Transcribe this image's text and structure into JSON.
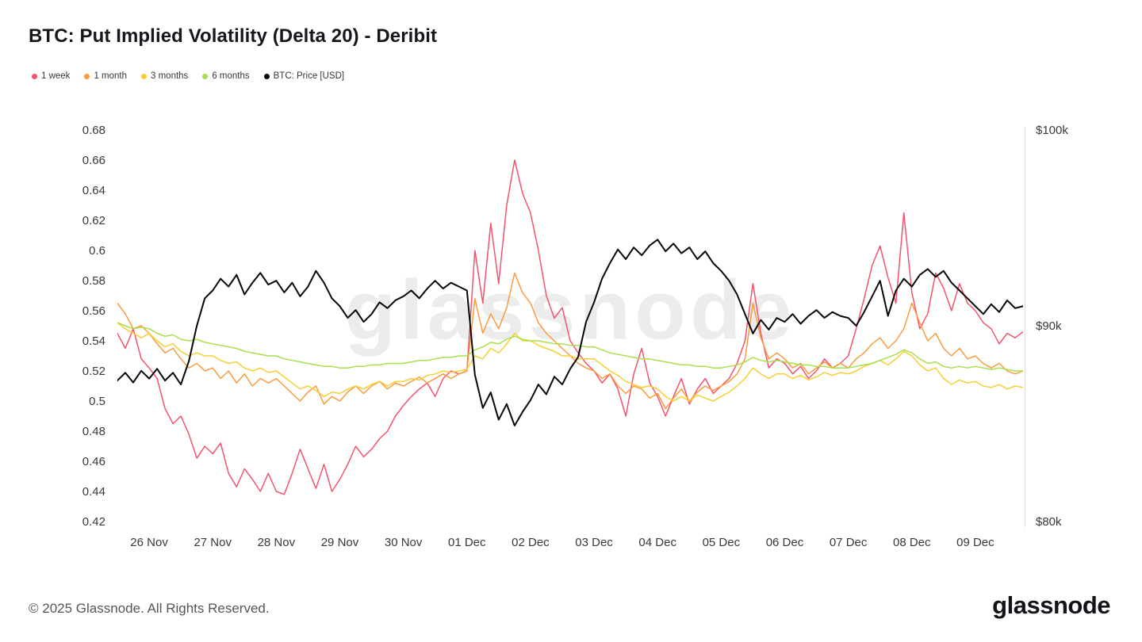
{
  "title": "BTC: Put Implied Volatility (Delta 20) - Deribit",
  "watermark": "glassnode",
  "footer": {
    "copyright": "© 2025 Glassnode. All Rights Reserved.",
    "brand": "glassnode"
  },
  "chart_data": {
    "type": "line",
    "title": "BTC: Put Implied Volatility (Delta 20) - Deribit",
    "grid": false,
    "legend_position": "top-left",
    "x_start": 0,
    "x_step": 0.125,
    "x_range": [
      0,
      14.25
    ],
    "x_ticks": {
      "positions": [
        0.5,
        1.5,
        2.5,
        3.5,
        4.5,
        5.5,
        6.5,
        7.5,
        8.5,
        9.5,
        10.5,
        11.5,
        12.5,
        13.5
      ],
      "labels": [
        "26 Nov",
        "27 Nov",
        "28 Nov",
        "29 Nov",
        "30 Nov",
        "01 Dec",
        "02 Dec",
        "03 Dec",
        "04 Dec",
        "05 Dec",
        "06 Dec",
        "07 Dec",
        "08 Dec",
        "09 Dec"
      ]
    },
    "left_axis": {
      "range": [
        0.42,
        0.68
      ],
      "tick_values": [
        0.68,
        0.66,
        0.64,
        0.62,
        0.6,
        0.58,
        0.56,
        0.54,
        0.52,
        0.5,
        0.48,
        0.46,
        0.44,
        0.42
      ],
      "tick_labels": [
        "0.68",
        "0.66",
        "0.64",
        "0.62",
        "0.6",
        "0.58",
        "0.56",
        "0.54",
        "0.52",
        "0.5",
        "0.48",
        "0.46",
        "0.44",
        "0.42"
      ]
    },
    "right_axis": {
      "range": [
        80,
        100
      ],
      "tick_values": [
        100,
        90,
        80
      ],
      "tick_labels": [
        "$100k",
        "$90k",
        "$80k"
      ]
    },
    "series": [
      {
        "name": "1 week",
        "color": "#f4536e",
        "axis": "left",
        "width": 1.5,
        "values": [
          0.545,
          0.535,
          0.548,
          0.528,
          0.522,
          0.515,
          0.495,
          0.485,
          0.49,
          0.478,
          0.462,
          0.47,
          0.465,
          0.472,
          0.452,
          0.443,
          0.455,
          0.448,
          0.44,
          0.452,
          0.44,
          0.438,
          0.452,
          0.468,
          0.455,
          0.442,
          0.458,
          0.44,
          0.448,
          0.458,
          0.47,
          0.463,
          0.468,
          0.475,
          0.48,
          0.49,
          0.497,
          0.503,
          0.508,
          0.512,
          0.503,
          0.515,
          0.52,
          0.518,
          0.52,
          0.6,
          0.565,
          0.618,
          0.578,
          0.63,
          0.66,
          0.638,
          0.625,
          0.6,
          0.57,
          0.555,
          0.562,
          0.54,
          0.532,
          0.525,
          0.52,
          0.512,
          0.518,
          0.508,
          0.49,
          0.518,
          0.535,
          0.512,
          0.503,
          0.49,
          0.503,
          0.515,
          0.498,
          0.508,
          0.515,
          0.505,
          0.51,
          0.515,
          0.525,
          0.54,
          0.578,
          0.545,
          0.522,
          0.528,
          0.525,
          0.518,
          0.523,
          0.515,
          0.52,
          0.528,
          0.522,
          0.525,
          0.53,
          0.548,
          0.568,
          0.59,
          0.603,
          0.582,
          0.565,
          0.625,
          0.572,
          0.548,
          0.558,
          0.585,
          0.575,
          0.56,
          0.578,
          0.565,
          0.56,
          0.552,
          0.548,
          0.538,
          0.545,
          0.542,
          0.546
        ]
      },
      {
        "name": "1 month",
        "color": "#fb9b3d",
        "axis": "left",
        "width": 1.5,
        "values": [
          0.565,
          0.558,
          0.548,
          0.55,
          0.545,
          0.538,
          0.532,
          0.535,
          0.528,
          0.522,
          0.525,
          0.52,
          0.522,
          0.515,
          0.52,
          0.512,
          0.518,
          0.51,
          0.515,
          0.512,
          0.515,
          0.51,
          0.505,
          0.5,
          0.506,
          0.51,
          0.498,
          0.503,
          0.5,
          0.506,
          0.51,
          0.505,
          0.51,
          0.513,
          0.508,
          0.512,
          0.51,
          0.513,
          0.516,
          0.512,
          0.515,
          0.518,
          0.515,
          0.518,
          0.52,
          0.568,
          0.545,
          0.558,
          0.548,
          0.562,
          0.585,
          0.572,
          0.565,
          0.552,
          0.545,
          0.54,
          0.535,
          0.53,
          0.525,
          0.522,
          0.52,
          0.515,
          0.518,
          0.51,
          0.505,
          0.51,
          0.508,
          0.502,
          0.505,
          0.495,
          0.502,
          0.508,
          0.5,
          0.506,
          0.51,
          0.507,
          0.51,
          0.513,
          0.518,
          0.528,
          0.565,
          0.542,
          0.528,
          0.532,
          0.528,
          0.522,
          0.525,
          0.518,
          0.522,
          0.526,
          0.522,
          0.525,
          0.522,
          0.528,
          0.532,
          0.538,
          0.542,
          0.535,
          0.54,
          0.548,
          0.565,
          0.552,
          0.54,
          0.545,
          0.535,
          0.53,
          0.535,
          0.528,
          0.53,
          0.525,
          0.522,
          0.525,
          0.52,
          0.518,
          0.52
        ]
      },
      {
        "name": "3 months",
        "color": "#f7cf35",
        "axis": "left",
        "width": 1.5,
        "values": [
          0.552,
          0.548,
          0.545,
          0.542,
          0.545,
          0.54,
          0.536,
          0.538,
          0.533,
          0.53,
          0.532,
          0.53,
          0.53,
          0.527,
          0.525,
          0.526,
          0.522,
          0.52,
          0.522,
          0.519,
          0.52,
          0.516,
          0.512,
          0.508,
          0.51,
          0.507,
          0.503,
          0.506,
          0.505,
          0.508,
          0.51,
          0.508,
          0.511,
          0.513,
          0.51,
          0.513,
          0.513,
          0.515,
          0.514,
          0.517,
          0.518,
          0.52,
          0.519,
          0.52,
          0.521,
          0.53,
          0.528,
          0.535,
          0.532,
          0.538,
          0.545,
          0.54,
          0.54,
          0.537,
          0.535,
          0.533,
          0.53,
          0.53,
          0.528,
          0.528,
          0.528,
          0.524,
          0.52,
          0.517,
          0.513,
          0.511,
          0.509,
          0.51,
          0.508,
          0.503,
          0.5,
          0.503,
          0.5,
          0.504,
          0.502,
          0.5,
          0.503,
          0.506,
          0.51,
          0.515,
          0.522,
          0.518,
          0.515,
          0.518,
          0.518,
          0.515,
          0.517,
          0.514,
          0.516,
          0.519,
          0.517,
          0.519,
          0.518,
          0.52,
          0.523,
          0.525,
          0.527,
          0.524,
          0.528,
          0.533,
          0.53,
          0.524,
          0.52,
          0.522,
          0.515,
          0.511,
          0.514,
          0.512,
          0.513,
          0.51,
          0.509,
          0.511,
          0.508,
          0.51,
          0.509
        ]
      },
      {
        "name": "6 months",
        "color": "#a6e04a",
        "axis": "left",
        "width": 1.5,
        "values": [
          0.552,
          0.55,
          0.548,
          0.549,
          0.548,
          0.545,
          0.543,
          0.544,
          0.541,
          0.54,
          0.541,
          0.539,
          0.538,
          0.537,
          0.536,
          0.535,
          0.533,
          0.532,
          0.531,
          0.53,
          0.53,
          0.528,
          0.527,
          0.526,
          0.525,
          0.524,
          0.523,
          0.523,
          0.522,
          0.522,
          0.523,
          0.523,
          0.524,
          0.524,
          0.525,
          0.525,
          0.525,
          0.526,
          0.527,
          0.527,
          0.528,
          0.529,
          0.529,
          0.53,
          0.53,
          0.534,
          0.536,
          0.539,
          0.538,
          0.541,
          0.543,
          0.541,
          0.54,
          0.54,
          0.539,
          0.538,
          0.538,
          0.537,
          0.537,
          0.536,
          0.536,
          0.534,
          0.532,
          0.531,
          0.53,
          0.529,
          0.528,
          0.528,
          0.527,
          0.526,
          0.525,
          0.524,
          0.524,
          0.523,
          0.523,
          0.522,
          0.522,
          0.523,
          0.524,
          0.526,
          0.529,
          0.527,
          0.526,
          0.527,
          0.526,
          0.525,
          0.524,
          0.524,
          0.523,
          0.523,
          0.522,
          0.522,
          0.522,
          0.523,
          0.524,
          0.525,
          0.527,
          0.529,
          0.531,
          0.534,
          0.532,
          0.528,
          0.525,
          0.526,
          0.523,
          0.522,
          0.523,
          0.522,
          0.523,
          0.522,
          0.521,
          0.522,
          0.521,
          0.52,
          0.52
        ]
      },
      {
        "name": "BTC: Price [USD]",
        "color": "#050505",
        "axis": "right",
        "width": 2,
        "values": [
          87.2,
          87.6,
          87.1,
          87.7,
          87.3,
          87.8,
          87.2,
          87.6,
          87.0,
          88.2,
          90.0,
          91.4,
          91.8,
          92.4,
          92.0,
          92.6,
          91.6,
          92.2,
          92.7,
          92.1,
          92.3,
          91.7,
          92.2,
          91.5,
          92.0,
          92.8,
          92.2,
          91.4,
          91.0,
          90.4,
          90.8,
          90.2,
          90.6,
          91.2,
          90.9,
          91.3,
          91.5,
          91.8,
          91.4,
          91.9,
          92.3,
          91.9,
          92.2,
          92.0,
          91.8,
          87.5,
          85.8,
          86.6,
          85.2,
          86.0,
          84.9,
          85.6,
          86.2,
          87.0,
          86.5,
          87.4,
          87.0,
          87.8,
          88.4,
          90.2,
          91.2,
          92.4,
          93.2,
          93.9,
          93.4,
          94.0,
          93.6,
          94.1,
          94.4,
          93.8,
          94.2,
          93.7,
          94.0,
          93.4,
          93.8,
          93.2,
          92.8,
          92.3,
          91.6,
          90.6,
          89.6,
          90.3,
          89.8,
          90.4,
          90.2,
          90.6,
          90.1,
          90.5,
          90.8,
          90.4,
          90.7,
          90.5,
          90.4,
          90.0,
          90.7,
          91.5,
          92.3,
          90.5,
          91.8,
          92.4,
          92.0,
          92.6,
          92.9,
          92.5,
          92.8,
          92.2,
          91.8,
          91.4,
          91.0,
          90.6,
          91.1,
          90.7,
          91.3,
          90.9,
          91.0
        ]
      }
    ]
  }
}
